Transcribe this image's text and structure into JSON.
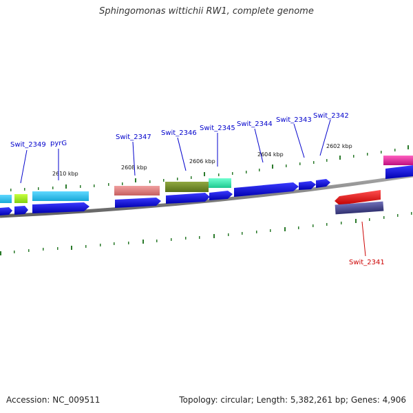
{
  "title": "Sphingomonas wittichii RW1, complete genome",
  "footer": {
    "accession": "Accession: NC_009511",
    "info": "Topology: circular; Length: 5,382,261 bp; Genes: 4,906"
  },
  "ticks": [
    "2610 kbp",
    "2608 kbp",
    "2606 kbp",
    "2604 kbp",
    "2602 kbp"
  ],
  "gene_labels": [
    {
      "name": "Swit_2349",
      "color": "#0000cc"
    },
    {
      "name": "pyrG",
      "color": "#0000cc"
    },
    {
      "name": "Swit_2347",
      "color": "#0000cc"
    },
    {
      "name": "Swit_2346",
      "color": "#0000cc"
    },
    {
      "name": "Swit_2345",
      "color": "#0000cc"
    },
    {
      "name": "Swit_2344",
      "color": "#0000cc"
    },
    {
      "name": "Swit_2343",
      "color": "#0000cc"
    },
    {
      "name": "Swit_2342",
      "color": "#0000cc"
    },
    {
      "name": "Swit_2341",
      "color": "#cc0000"
    }
  ],
  "colors": {
    "cds": "#1010e0",
    "backbone": "#808080",
    "tick": "#2a7a2a",
    "label_forward": "#0000cc",
    "label_reverse": "#cc0000"
  }
}
